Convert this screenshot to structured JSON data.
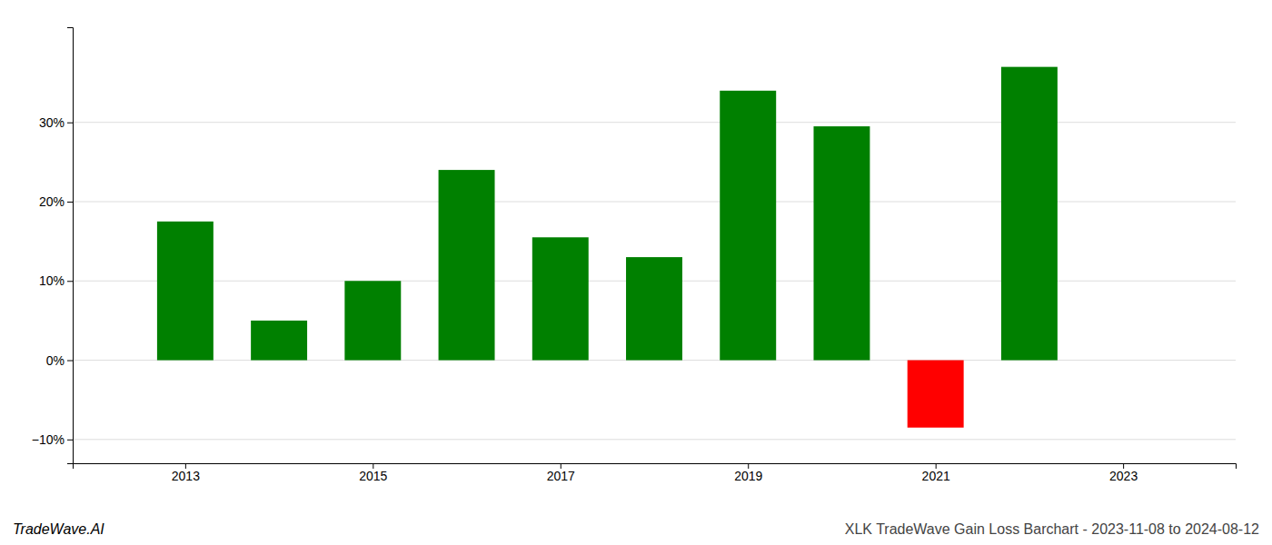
{
  "chart_data": {
    "type": "bar",
    "title": "XLK TradeWave Gain Loss Barchart - 2023-11-08 to 2024-08-12",
    "annotations": [
      "TradeWave.AI"
    ],
    "x": [
      2013,
      2014,
      2015,
      2016,
      2017,
      2018,
      2019,
      2020,
      2021,
      2022
    ],
    "values": [
      17.5,
      5.0,
      10.0,
      24.0,
      15.5,
      13.0,
      34.0,
      29.5,
      -8.5,
      37.0
    ],
    "colors": [
      "#008000",
      "#008000",
      "#008000",
      "#008000",
      "#008000",
      "#008000",
      "#008000",
      "#008000",
      "#ff0000",
      "#008000"
    ],
    "xlim": [
      2011.8,
      2024.2
    ],
    "xticks": [
      2013,
      2015,
      2017,
      2019,
      2021,
      2023
    ],
    "ylim": [
      -13,
      42
    ],
    "yticks": [
      {
        "value": -10,
        "label": "−10%"
      },
      {
        "value": 0,
        "label": "0%"
      },
      {
        "value": 10,
        "label": "10%"
      },
      {
        "value": 20,
        "label": "20%"
      },
      {
        "value": 30,
        "label": "30%"
      }
    ],
    "grid": true
  }
}
